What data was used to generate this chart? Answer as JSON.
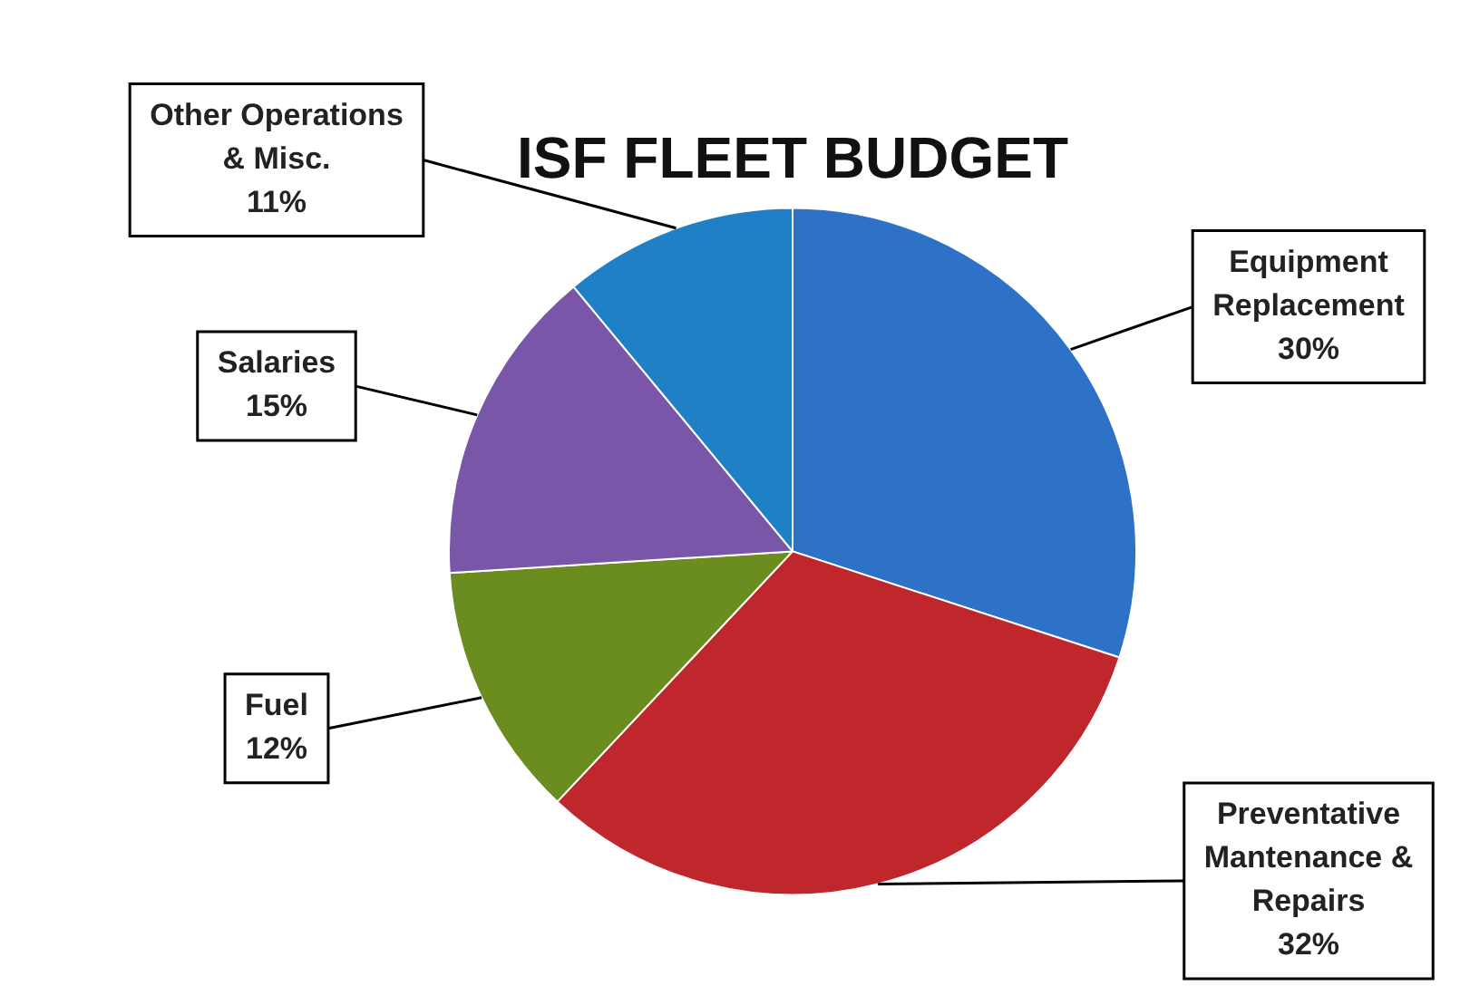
{
  "chart_data": {
    "type": "pie",
    "title": "ISF FLEET BUDGET",
    "categories": [
      "Equipment Replacement",
      "Preventative Mantenance & Repairs",
      "Fuel",
      "Salaries",
      "Other Operations & Misc."
    ],
    "values": [
      30,
      32,
      12,
      15,
      11
    ],
    "value_labels": [
      "30%",
      "32%",
      "12%",
      "15%",
      "11%"
    ],
    "colors": [
      "#2e72c8",
      "#c0272d",
      "#6b8d1f",
      "#7a56a8",
      "#1f80c6"
    ],
    "legend": false
  }
}
